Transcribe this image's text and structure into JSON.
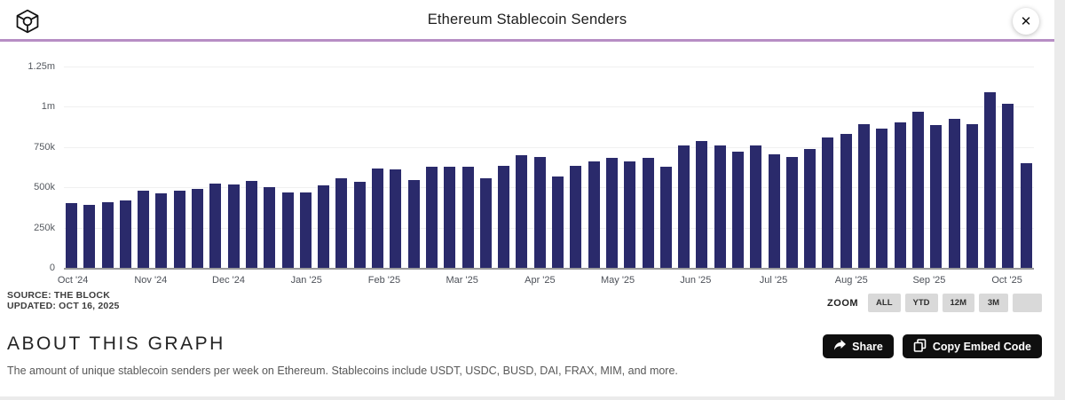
{
  "header": {
    "title": "Ethereum Stablecoin Senders",
    "close_glyph": "✕"
  },
  "chart_data": {
    "type": "bar",
    "title": "Ethereum Stablecoin Senders",
    "xlabel": "",
    "ylabel": "",
    "ylim": [
      0,
      1250000
    ],
    "grid": true,
    "bar_color": "#2a2a6b",
    "y_ticks": [
      {
        "label": "1.25m",
        "value": 1250000
      },
      {
        "label": "1m",
        "value": 1000000
      },
      {
        "label": "750k",
        "value": 750000
      },
      {
        "label": "500k",
        "value": 500000
      },
      {
        "label": "250k",
        "value": 250000
      },
      {
        "label": "0",
        "value": 0
      }
    ],
    "x_tick_labels": [
      "Oct '24",
      "Nov '24",
      "Dec '24",
      "Jan '25",
      "Feb '25",
      "Mar '25",
      "Apr '25",
      "May '25",
      "Jun '25",
      "Jul '25",
      "Aug '25",
      "Sep '25",
      "Oct '25"
    ],
    "series_name": "Unique stablecoin senders per week",
    "values": [
      400000,
      390000,
      405000,
      420000,
      480000,
      465000,
      480000,
      490000,
      525000,
      515000,
      540000,
      500000,
      470000,
      470000,
      510000,
      555000,
      535000,
      615000,
      610000,
      545000,
      630000,
      630000,
      630000,
      555000,
      635000,
      700000,
      690000,
      565000,
      635000,
      660000,
      685000,
      660000,
      685000,
      630000,
      760000,
      785000,
      760000,
      720000,
      760000,
      705000,
      690000,
      740000,
      810000,
      830000,
      890000,
      865000,
      905000,
      970000,
      885000,
      925000,
      890000,
      1090000,
      1020000,
      650000
    ]
  },
  "footer_meta": {
    "source": "SOURCE: THE BLOCK",
    "updated": "UPDATED: OCT 16, 2025"
  },
  "zoom_controls": {
    "label": "ZOOM",
    "options": [
      "ALL",
      "YTD",
      "12M",
      "3M",
      ""
    ]
  },
  "about": {
    "heading": "ABOUT THIS GRAPH",
    "description": "The amount of unique stablecoin senders per week on Ethereum. Stablecoins include USDT, USDC, BUSD, DAI, FRAX, MIM, and more."
  },
  "actions": {
    "share": "Share",
    "copy_embed": "Copy Embed Code"
  }
}
